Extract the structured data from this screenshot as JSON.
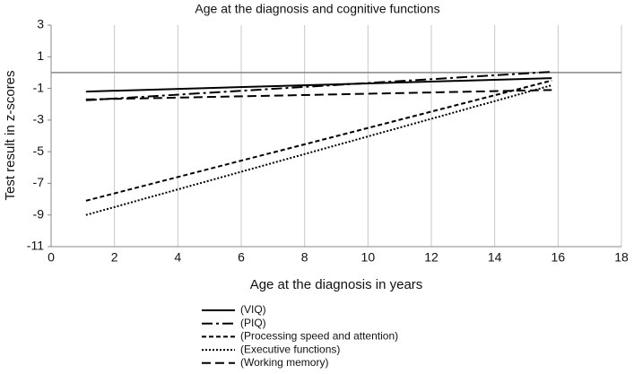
{
  "chart_data": {
    "type": "line",
    "title": "Age at the diagnosis and cognitive functions",
    "x_label": "Age at the diagnosis in years",
    "y_label": "Test result in z-scores",
    "x": [
      1.1,
      15.8
    ],
    "series": [
      {
        "name": "(VIQ)",
        "color": "#000000",
        "dash": "solid",
        "values": [
          -1.2,
          -0.35
        ]
      },
      {
        "name": "(PIQ)",
        "color": "#000000",
        "dash": "dash-dot",
        "values": [
          -1.75,
          0.05
        ]
      },
      {
        "name": "(Processing speed and attention)",
        "color": "#000000",
        "dash": "short-dash",
        "values": [
          -8.1,
          -0.5
        ]
      },
      {
        "name": "(Executive functions)",
        "color": "#000000",
        "dash": "dot",
        "values": [
          -9.0,
          -0.8
        ]
      },
      {
        "name": "(Working memory)",
        "color": "#000000",
        "dash": "long-dash",
        "values": [
          -1.7,
          -1.1
        ]
      }
    ],
    "xlim": [
      0,
      18
    ],
    "xticks": [
      0,
      2,
      4,
      6,
      8,
      10,
      12,
      14,
      16,
      18
    ],
    "ylim": [
      -11,
      3
    ],
    "yticks": [
      -11,
      -9,
      -7,
      -5,
      -3,
      -1,
      1,
      3
    ],
    "grid": "vertical",
    "x_axis_crosses_at": 0,
    "legend": "bottom"
  }
}
